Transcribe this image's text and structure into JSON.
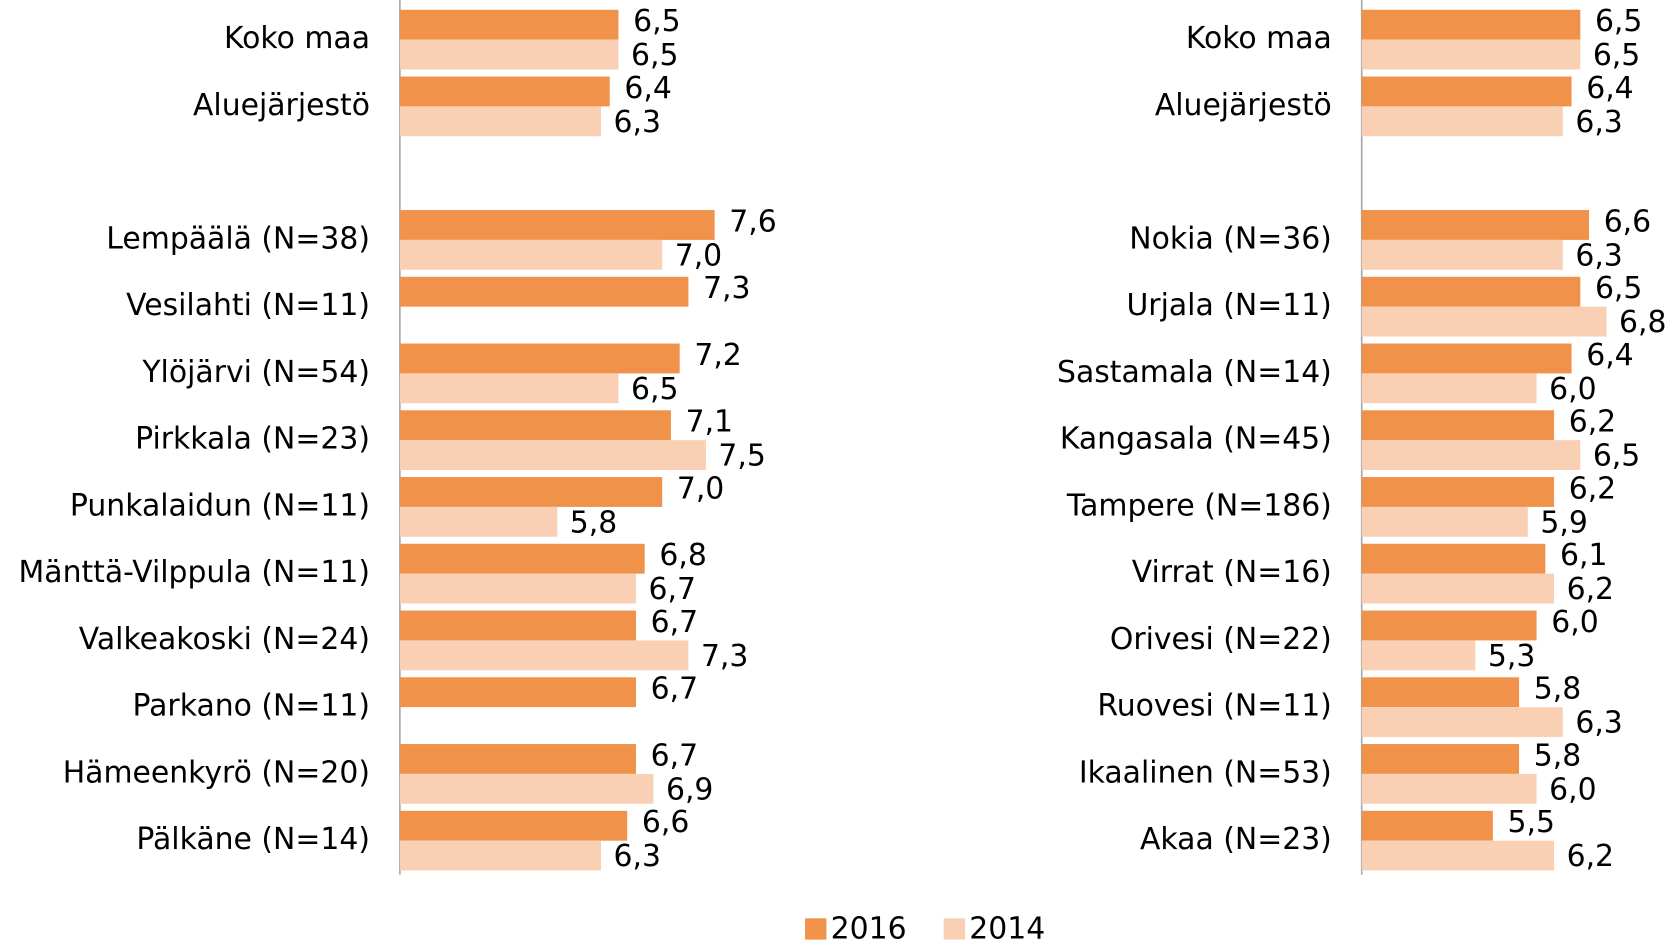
{
  "chart_data": [
    {
      "type": "bar",
      "orientation": "horizontal",
      "xlim": [
        4,
        9
      ],
      "categories": [
        "Koko maa",
        "Aluejärjestö",
        null,
        "Lempäälä (N=38)",
        "Vesilahti (N=11)",
        "Ylöjärvi (N=54)",
        "Pirkkala (N=23)",
        "Punkalaidun (N=11)",
        "Mänttä-Vilppula (N=11)",
        "Valkeakoski (N=24)",
        "Parkano (N=11)",
        "Hämeenkyrö (N=20)",
        "Pälkäne (N=14)"
      ],
      "series": [
        {
          "name": "2016",
          "color": "#f0924a",
          "values": [
            6.5,
            6.4,
            null,
            7.6,
            7.3,
            7.2,
            7.1,
            7.0,
            6.8,
            6.7,
            6.7,
            6.7,
            6.6
          ],
          "value_labels": [
            "6,5",
            "6,4",
            null,
            "7,6",
            "7,3",
            "7,2",
            "7,1",
            "7,0",
            "6,8",
            "6,7",
            "6,7",
            "6,7",
            "6,6"
          ]
        },
        {
          "name": "2014",
          "color": "#f9d0b4",
          "values": [
            6.5,
            6.3,
            null,
            7.0,
            null,
            6.5,
            7.5,
            5.8,
            6.7,
            7.3,
            null,
            6.9,
            6.3
          ],
          "value_labels": [
            "6,5",
            "6,3",
            null,
            "7,0",
            null,
            "6,5",
            "7,5",
            "5,8",
            "6,7",
            "7,3",
            null,
            "6,9",
            "6,3"
          ]
        }
      ]
    },
    {
      "type": "bar",
      "orientation": "horizontal",
      "xlim": [
        4,
        9
      ],
      "categories": [
        "Koko maa",
        "Aluejärjestö",
        null,
        "Nokia (N=36)",
        "Urjala (N=11)",
        "Sastamala (N=14)",
        "Kangasala (N=45)",
        "Tampere (N=186)",
        "Virrat (N=16)",
        "Orivesi (N=22)",
        "Ruovesi (N=11)",
        "Ikaalinen (N=53)",
        "Akaa (N=23)"
      ],
      "series": [
        {
          "color": "#f0924a",
          "values": [
            6.5,
            6.4,
            null,
            6.6,
            6.5,
            6.4,
            6.2,
            6.2,
            6.1,
            6.0,
            5.8,
            5.8,
            5.5
          ],
          "value_labels": [
            "6,5",
            "6,4",
            null,
            "6,6",
            "6,5",
            "6,4",
            "6,2",
            "6,2",
            "6,1",
            "6,0",
            "5,8",
            "5,8",
            "5,5"
          ]
        },
        {
          "color": "#f9d0b4",
          "values": [
            6.5,
            6.3,
            null,
            6.3,
            6.8,
            6.0,
            6.5,
            5.9,
            6.2,
            5.3,
            6.3,
            6.0,
            6.2
          ],
          "value_labels": [
            "6,5",
            "6,3",
            null,
            "6,3",
            "6,8",
            "6,0",
            "6,5",
            "5,9",
            "6,2",
            "5,3",
            "6,3",
            "6,0",
            "6,2"
          ]
        }
      ]
    }
  ]
}
